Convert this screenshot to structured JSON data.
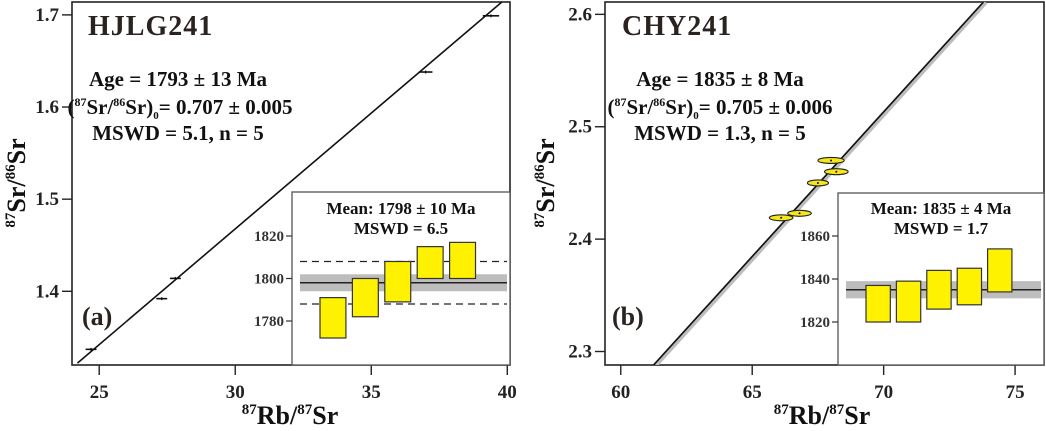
{
  "chart_data": [
    {
      "type": "scatter",
      "panel_label": "(a)",
      "title": "HJLG241",
      "xlabel": {
        "sup1": "87",
        "main1": "Rb/",
        "sup2": "87",
        "main2": "Sr"
      },
      "ylabel": {
        "sup1": "87",
        "main1": "Sr/",
        "sup2": "86",
        "main2": "Sr"
      },
      "xlim": [
        24,
        40.1
      ],
      "ylim": [
        1.32,
        1.714
      ],
      "xticks": [
        25,
        30,
        35,
        40
      ],
      "yticks": [
        1.4,
        1.5,
        1.6,
        1.7
      ],
      "ytick_labels": [
        "1.4",
        "1.5",
        "1.6",
        "1.7"
      ],
      "annotations": {
        "age": "Age = 1793 ± 13 Ma",
        "initial_prefix": "(",
        "initial_sup1": "87",
        "initial_mid": "Sr/",
        "initial_sup2": "86",
        "initial_mid2": "Sr)",
        "initial_sub": "0",
        "initial_value": "= 0.707 ± 0.005",
        "mswd": "MSWD = 5.1, n = 5"
      },
      "isochron": {
        "x": [
          24.2,
          39.8
        ],
        "y": [
          1.322,
          1.714
        ]
      },
      "points": [
        {
          "x": 24.7,
          "y": 1.337,
          "xerr": 0.2
        },
        {
          "x": 27.3,
          "y": 1.392,
          "xerr": 0.2
        },
        {
          "x": 27.8,
          "y": 1.414,
          "xerr": 0.2
        },
        {
          "x": 37.0,
          "y": 1.638,
          "xerr": 0.25
        },
        {
          "x": 39.4,
          "y": 1.699,
          "xerr": 0.3
        }
      ],
      "point_style": "error-cross",
      "inset": {
        "type": "weighted-mean",
        "title": "Mean: 1798 ± 10 Ma",
        "subtitle": "MSWD = 6.5",
        "ylim": [
          1765,
          1845
        ],
        "yticks": [
          1780,
          1800,
          1820
        ],
        "mean": 1798,
        "mean_band": [
          1794,
          1802
        ],
        "dashed_lines": [
          1788,
          1808
        ],
        "bars": [
          {
            "low": 1772,
            "high": 1791
          },
          {
            "low": 1782,
            "high": 1800
          },
          {
            "low": 1789,
            "high": 1808
          },
          {
            "low": 1800,
            "high": 1815
          },
          {
            "low": 1800,
            "high": 1817
          }
        ]
      }
    },
    {
      "type": "scatter",
      "panel_label": "(b)",
      "title": "CHY241",
      "xlabel": {
        "sup1": "87",
        "main1": "Rb/",
        "sup2": "87",
        "main2": "Sr"
      },
      "ylabel": {
        "sup1": "87",
        "main1": "Sr/",
        "sup2": "86",
        "main2": "Sr"
      },
      "xlim": [
        59.4,
        76.1
      ],
      "ylim": [
        2.288,
        2.611
      ],
      "xticks": [
        60,
        65,
        70,
        75
      ],
      "yticks": [
        2.3,
        2.4,
        2.5,
        2.6
      ],
      "ytick_labels": [
        "2.3",
        "2.4",
        "2.5",
        "2.6"
      ],
      "annotations": {
        "age": "Age = 1835 ± 8 Ma",
        "initial_prefix": "(",
        "initial_sup1": "87",
        "initial_mid": "Sr/",
        "initial_sup2": "86",
        "initial_mid2": "Sr)",
        "initial_sub": "0",
        "initial_value": "= 0.705 ± 0.006",
        "mswd": "MSWD = 1.3, n = 5"
      },
      "isochron": {
        "x": [
          61.25,
          73.8
        ],
        "y": [
          2.288,
          2.611
        ]
      },
      "points": [
        {
          "x": 68.0,
          "y": 2.47,
          "xerr": 0.5
        },
        {
          "x": 68.2,
          "y": 2.46,
          "xerr": 0.45
        },
        {
          "x": 67.5,
          "y": 2.45,
          "xerr": 0.4
        },
        {
          "x": 66.8,
          "y": 2.423,
          "xerr": 0.45
        },
        {
          "x": 66.1,
          "y": 2.419,
          "xerr": 0.45
        }
      ],
      "point_style": "ellipse",
      "inset": {
        "type": "weighted-mean",
        "title": "Mean: 1835 ± 4 Ma",
        "subtitle": "MSWD = 1.7",
        "ylim": [
          1800,
          1880
        ],
        "yticks": [
          1820,
          1840,
          1860
        ],
        "mean": 1835,
        "mean_band": [
          1831,
          1839
        ],
        "dashed_lines": [],
        "bars": [
          {
            "low": 1820,
            "high": 1837
          },
          {
            "low": 1820,
            "high": 1839
          },
          {
            "low": 1826,
            "high": 1844
          },
          {
            "low": 1828,
            "high": 1845
          },
          {
            "low": 1834,
            "high": 1854
          }
        ]
      }
    }
  ],
  "colors": {
    "bar_fill": "#fff200",
    "bar_stroke": "#333333",
    "band": "#bdbdbd",
    "ellipse_fill": "#f5e71a"
  }
}
